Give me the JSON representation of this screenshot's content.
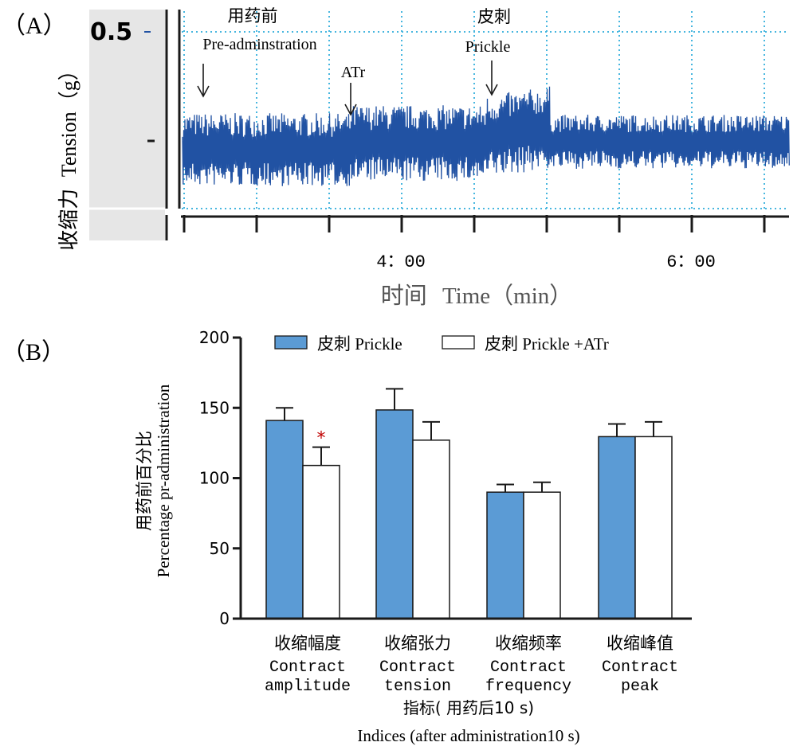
{
  "panel_a": {
    "label": "（A）",
    "y_label_cn": "收缩力",
    "y_label_en": "Tension（g）",
    "y_tick": "0.5",
    "x_label_cn": "时间",
    "x_label_en": "Time（min）",
    "x_ticks": [
      "4：00",
      "6：00"
    ],
    "annotations": [
      {
        "cn": "用药前",
        "en": "Pre-adminstration"
      },
      {
        "cn": "",
        "en": "ATr"
      },
      {
        "cn": "皮刺",
        "en": "Prickle"
      }
    ],
    "trace_color": "#2152a3",
    "grid_color": "#46b6df"
  },
  "panel_b": {
    "label": "（B）",
    "y_label_cn": "用药前百分比",
    "y_label_en": "Percentage pr-administration",
    "x_label_cn": "指标(  用药后10 s)",
    "x_label_en": "Indices (after administration10 s)",
    "significance": "*",
    "significance_color": "#c00000"
  },
  "chart_data": {
    "type": "bar",
    "ylim": [
      0,
      200
    ],
    "yticks": [
      0,
      50,
      100,
      150,
      200
    ],
    "categories": [
      {
        "cn": "收缩幅度",
        "en1": "Contract",
        "en2": "amplitude"
      },
      {
        "cn": "收缩张力",
        "en1": "Contract",
        "en2": "tension"
      },
      {
        "cn": "收缩频率",
        "en1": "Contract",
        "en2": "frequency"
      },
      {
        "cn": "收缩峰值",
        "en1": "Contract",
        "en2": "peak"
      }
    ],
    "series": [
      {
        "name": "皮刺  Prickle",
        "color": "#5b9bd5",
        "values": [
          141,
          148.5,
          90,
          129.5
        ],
        "errors": [
          9,
          15,
          5.5,
          9
        ]
      },
      {
        "name": "皮刺  Prickle +ATr",
        "color": "#ffffff",
        "values": [
          109,
          127,
          90,
          129.5
        ],
        "errors": [
          13,
          13,
          7,
          10.5
        ]
      }
    ],
    "legend": "top"
  }
}
